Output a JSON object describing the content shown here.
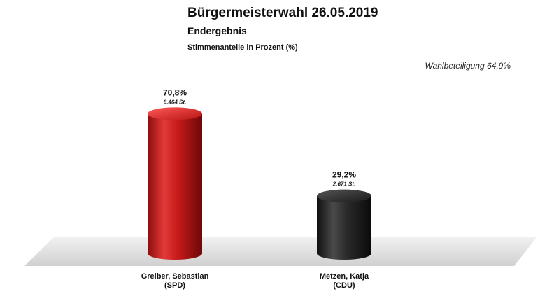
{
  "chart_data": {
    "type": "bar",
    "title": "Bürgermeisterwahl 26.05.2019",
    "subtitle": "Endergebnis",
    "ylabel": "Stimmenanteile in Prozent (%)",
    "annotation": "Wahlbeteiligung 64,9%",
    "ylim": [
      0,
      100
    ],
    "grid": false,
    "legend": "none",
    "categories": [
      {
        "line1": "Greiber, Sebastian",
        "line2": "(SPD)"
      },
      {
        "line1": "Metzen, Katja",
        "line2": "(CDU)"
      }
    ],
    "values": [
      70.8,
      29.2
    ],
    "value_labels": [
      "70,8%",
      "29,2%"
    ],
    "vote_labels": [
      "6.464 St.",
      "2.671 St."
    ],
    "colors": [
      "#d42020",
      "#2a2a2a"
    ]
  }
}
